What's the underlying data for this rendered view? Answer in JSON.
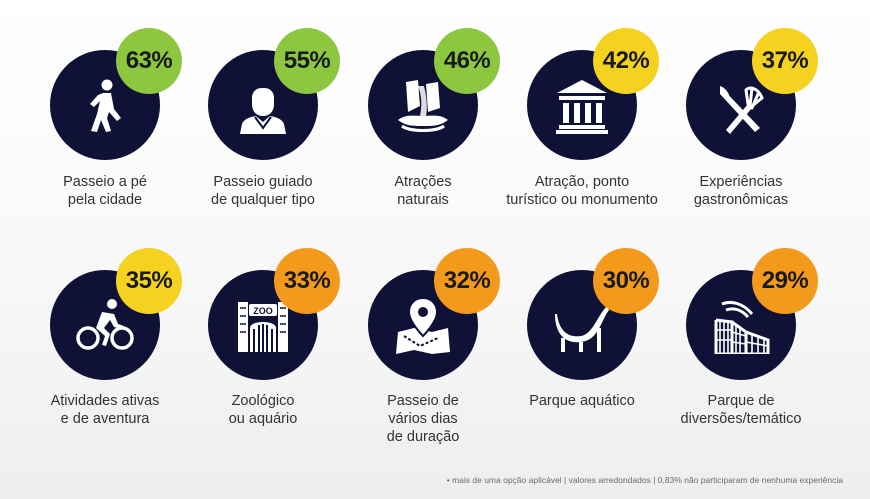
{
  "chart_data": {
    "type": "table",
    "items": [
      {
        "label": "Passeio a pé\npela cidade",
        "value": "63%",
        "badge_color": "#8dc63f",
        "icon": "walking-person-icon"
      },
      {
        "label": "Passeio guiado\nde qualquer tipo",
        "value": "55%",
        "badge_color": "#8dc63f",
        "icon": "tour-guide-icon"
      },
      {
        "label": "Atrações\nnaturais",
        "value": "46%",
        "badge_color": "#8dc63f",
        "icon": "waterfall-icon"
      },
      {
        "label": "Atração, ponto\nturístico ou monumento",
        "value": "42%",
        "badge_color": "#f5d21f",
        "icon": "monument-icon"
      },
      {
        "label": "Experiências\ngastronômicas",
        "value": "37%",
        "badge_color": "#f5d21f",
        "icon": "fork-knife-icon"
      },
      {
        "label": "Atividades ativas\ne de aventura",
        "value": "35%",
        "badge_color": "#f5d21f",
        "icon": "cyclist-icon"
      },
      {
        "label": "Zoológico\nou aquário",
        "value": "33%",
        "badge_color": "#f39a1c",
        "icon": "zoo-gate-icon"
      },
      {
        "label": "Passeio de\nvários dias\nde duração",
        "value": "32%",
        "badge_color": "#f39a1c",
        "icon": "map-pin-icon"
      },
      {
        "label": "Parque aquático",
        "value": "30%",
        "badge_color": "#f39a1c",
        "icon": "water-slide-icon"
      },
      {
        "label": "Parque de\ndiversões/temático",
        "value": "29%",
        "badge_color": "#f39a1c",
        "icon": "roller-coaster-icon"
      }
    ]
  },
  "footnote": "• mais de uma opção aplicável  |  valores arredondados  | 0,83% não participaram de nenhuma experiência",
  "colors": {
    "circle": "#0f1137",
    "icon": "#ffffff",
    "text": "#333333"
  }
}
